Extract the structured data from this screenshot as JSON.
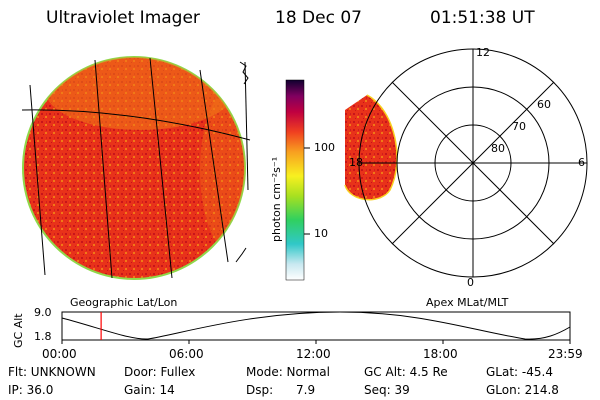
{
  "header": {
    "instrument": "Ultraviolet Imager",
    "date": "18 Dec 07",
    "time": "01:51:38 UT"
  },
  "colors": {
    "aurora_dark": "#cc1414",
    "aurora_mid": "#e83a1a",
    "aurora_orange": "#f07a18",
    "limb": "#8fd84a",
    "grid": "#000000",
    "marker": "#ff0000"
  },
  "colorbar": {
    "unit_label": "photon cm⁻²s⁻¹",
    "ticks": [
      "100",
      "10"
    ],
    "scale": "log"
  },
  "geo_panel": {
    "label": "Geographic Lat/Lon"
  },
  "polar_panel": {
    "label": "Apex MLat/MLT",
    "lat_labels": [
      "60",
      "70",
      "80"
    ],
    "mlt_labels": [
      "12",
      "6",
      "0",
      "18"
    ]
  },
  "altitude_plot": {
    "ylabel": "GC Alt",
    "ytick_top": "9.0",
    "ytick_bottom": "1.8",
    "xticks": [
      "00:00",
      "06:00",
      "12:00",
      "18:00",
      "23:59"
    ],
    "current_time_fraction": 0.077
  },
  "info": {
    "flt": "Flt: UNKNOWN",
    "ip": "IP: 36.0",
    "door": "Door: Fullex",
    "gain": "Gain: 14",
    "mode": "Mode: Normal",
    "dsp": "Dsp:      7.9",
    "gc_alt": "GC Alt: 4.5 Re",
    "seq": "Seq: 39",
    "glat": "GLat: -45.4",
    "glon": "GLon: 214.8"
  }
}
